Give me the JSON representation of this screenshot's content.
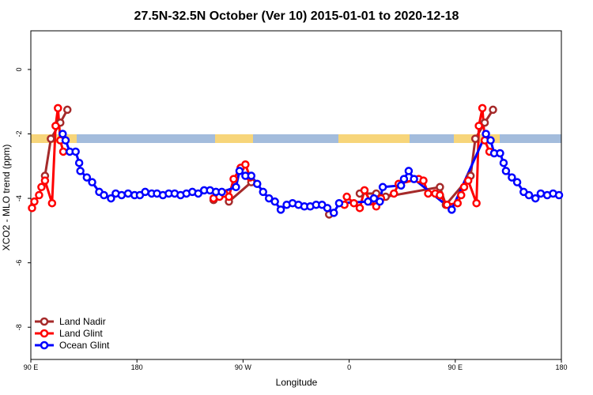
{
  "chart_data": {
    "type": "line",
    "title": "27.5N-32.5N October (Ver 10)   2015-01-01 to 2020-12-18",
    "x_label": "Longitude",
    "y_label": "XCO2 - MLO trend (ppm)",
    "xlim": [
      90,
      540
    ],
    "ylim": [
      -9,
      1.2
    ],
    "xticks": [
      {
        "value": 90,
        "label": "90 E"
      },
      180,
      {
        "value": 270,
        "label": "90 W"
      },
      {
        "value": 360,
        "label": "0"
      },
      {
        "value": 450,
        "label": "90 E"
      },
      {
        "value": 540,
        "label": "180"
      }
    ],
    "yticks": [
      0,
      -2,
      -4,
      -6,
      -8
    ],
    "legend": "bottom-left",
    "series": [
      {
        "name": "Land Nadir",
        "color": "#a52a2a",
        "x": [
          102,
          107,
          115,
          121,
          null,
          245,
          254,
          258,
          277,
          null,
          343,
          null,
          369,
          383,
          391,
          437,
          442,
          463,
          467,
          475,
          482
        ],
        "values": [
          -3.3,
          -2.15,
          -1.65,
          -1.25,
          null,
          -4.05,
          -3.85,
          -4.1,
          -3.5,
          null,
          -4.5,
          null,
          -3.85,
          -3.85,
          -3.95,
          -3.65,
          -4.2,
          -3.3,
          -2.15,
          -1.65,
          -1.25
        ]
      },
      {
        "name": "Land Glint",
        "color": "#ff0000",
        "x": [
          91,
          93,
          97,
          99,
          102,
          108,
          111,
          113,
          115,
          117.5,
          null,
          245,
          250,
          254,
          258,
          262,
          268,
          272,
          276,
          null,
          356,
          358,
          364,
          369,
          373,
          378,
          383,
          387,
          398,
          402,
          419,
          423,
          427,
          433,
          437,
          443,
          452,
          455,
          457.5,
          461,
          468,
          470,
          473,
          475,
          479
        ],
        "values": [
          -4.3,
          -4.1,
          -3.9,
          -3.65,
          -3.45,
          -4.15,
          -1.75,
          -1.2,
          -2.2,
          -2.55,
          null,
          -4.0,
          -3.95,
          -3.85,
          -3.95,
          -3.4,
          -3.05,
          -2.95,
          -3.35,
          null,
          -4.2,
          -3.95,
          -4.15,
          -4.3,
          -3.75,
          -4.1,
          -4.25,
          -4.0,
          -3.85,
          -3.55,
          -3.4,
          -3.45,
          -3.85,
          -3.85,
          -3.9,
          -4.2,
          -4.15,
          -3.9,
          -3.65,
          -3.45,
          -4.15,
          -1.75,
          -1.2,
          -2.2,
          -2.55
        ]
      },
      {
        "name": "Ocean Glint",
        "color": "#0000ff",
        "x": [
          117,
          119.5,
          123,
          128,
          131,
          132,
          137.5,
          142,
          148,
          152,
          158,
          162,
          167,
          172.5,
          178,
          182.5,
          187,
          192.5,
          197,
          202,
          207,
          212,
          217,
          222,
          227,
          232,
          237,
          242,
          247,
          252,
          264,
          267,
          272,
          277,
          282,
          287,
          292,
          297,
          302,
          307,
          312,
          317,
          322,
          327,
          332,
          337,
          341.5,
          347,
          351.5,
          376,
          381,
          386,
          388.5,
          404,
          406.5,
          410.5,
          415,
          447,
          476,
          480,
          483,
          488,
          491,
          493,
          498,
          502.5,
          508,
          512.5,
          518,
          522.5,
          528,
          533,
          538
        ],
        "values": [
          -2.0,
          -2.2,
          -2.55,
          -2.55,
          -2.9,
          -3.15,
          -3.35,
          -3.5,
          -3.8,
          -3.9,
          -4.0,
          -3.85,
          -3.9,
          -3.85,
          -3.9,
          -3.9,
          -3.8,
          -3.85,
          -3.85,
          -3.9,
          -3.85,
          -3.85,
          -3.9,
          -3.85,
          -3.8,
          -3.85,
          -3.75,
          -3.75,
          -3.8,
          -3.8,
          -3.65,
          -3.15,
          -3.3,
          -3.3,
          -3.55,
          -3.8,
          -4.0,
          -4.1,
          -4.35,
          -4.2,
          -4.15,
          -4.2,
          -4.25,
          -4.25,
          -4.2,
          -4.2,
          -4.3,
          -4.45,
          -4.15,
          -4.1,
          -4.0,
          -4.1,
          -3.65,
          -3.6,
          -3.4,
          -3.15,
          -3.4,
          -4.35,
          -2.0,
          -2.2,
          -2.6,
          -2.6,
          -2.9,
          -3.15,
          -3.35,
          -3.5,
          -3.8,
          -3.9,
          -4.0,
          -3.85,
          -3.9,
          -3.85,
          -3.9
        ]
      }
    ]
  }
}
